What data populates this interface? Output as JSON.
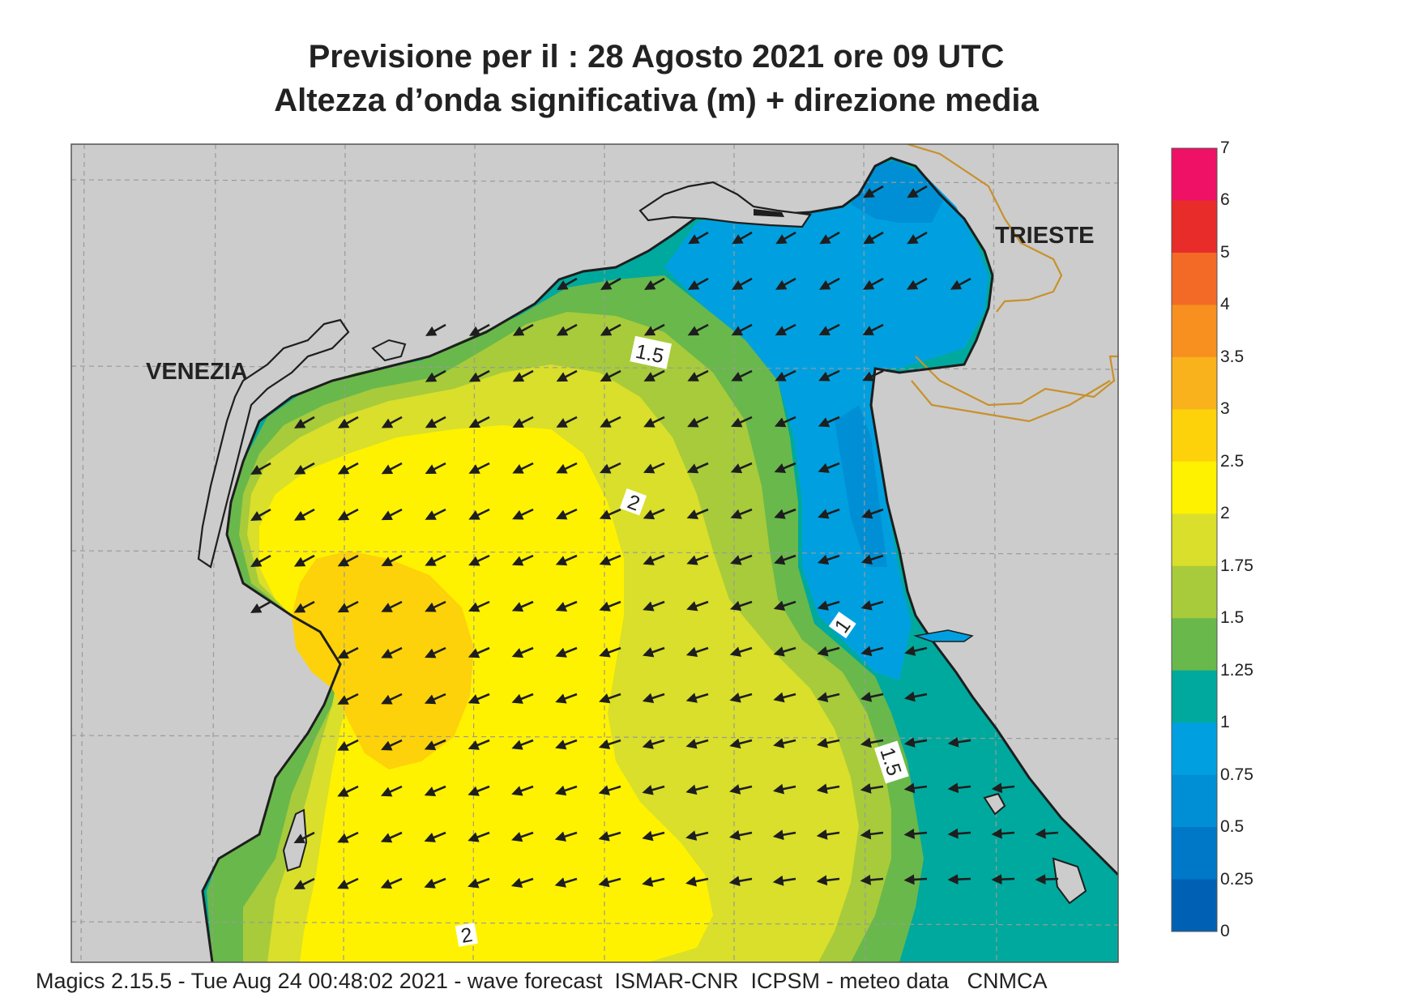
{
  "title": {
    "line1": "Previsione per il  :  28   Agosto  2021   ore 09 UTC",
    "line2": "Altezza d’onda significativa (m) + direzione media"
  },
  "places": {
    "venezia": "VENEZIA",
    "trieste": "TRIESTE"
  },
  "contour_labels": [
    "1.5",
    "2",
    "1",
    "1.5",
    "2"
  ],
  "colorbar": {
    "labels": [
      "7",
      "6",
      "5",
      "4",
      "3.5",
      "3",
      "2.5",
      "2",
      "1.75",
      "1.5",
      "1.25",
      "1",
      "0.75",
      "0.5",
      "0.25",
      "0"
    ],
    "colors": [
      "#ee1166",
      "#e82c2a",
      "#f26a25",
      "#f7901f",
      "#f9b21b",
      "#fdd20a",
      "#fff200",
      "#d9df2a",
      "#a7cb3b",
      "#69b84b",
      "#00a99d",
      "#00a0e0",
      "#008fd5",
      "#0078c8",
      "#0061b4"
    ]
  },
  "legend_colors": {
    "land": "#cccccc",
    "grid": "#9a9a9a",
    "border": "#c8912b",
    "arrow": "#1e1e1e"
  },
  "footer": "Magics 2.15.5 - Tue Aug 24 00:48:02 2021 - wave forecast  ISMAR-CNR  ICPSM - meteo data   CNMCA"
}
